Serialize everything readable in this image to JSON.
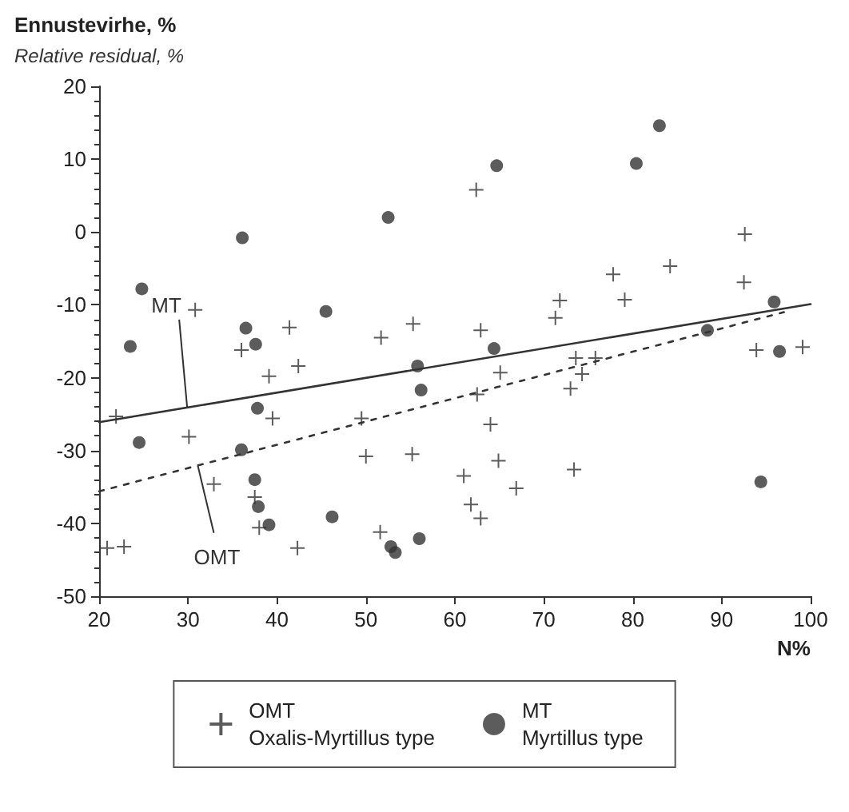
{
  "chart_data": {
    "type": "scatter",
    "title": "Ennustevirhe, %",
    "subtitle": "Relative residual, %",
    "xlabel": "N%",
    "xlim": [
      20,
      100
    ],
    "xticks": [
      20,
      30,
      40,
      50,
      60,
      70,
      80,
      90,
      100
    ],
    "ylim": [
      -50,
      20
    ],
    "yticks": [
      -50,
      -40,
      -30,
      -20,
      -10,
      0,
      10,
      20
    ],
    "grid": false,
    "legend": "bottom",
    "series": [
      {
        "name": "OMT\nOxalis-Myrtillus type",
        "marker": "cross",
        "color": "#333333",
        "x": [
          30.8,
          41.4,
          51.7,
          55.3,
          36.0,
          21.9,
          30.1,
          39.1,
          42.4,
          39.5,
          49.5,
          50.0,
          55.2,
          32.9,
          37.5,
          38.0,
          22.8,
          20.9,
          42.3,
          51.6,
          62.4,
          92.6,
          84.2,
          77.8,
          71.8,
          79.1,
          71.3,
          92.5,
          62.9,
          93.9,
          99.1,
          73.6,
          75.8,
          74.3,
          73.0,
          65.1,
          62.5,
          64.0,
          64.9,
          61.0,
          66.9,
          61.8,
          62.9,
          73.4
        ],
        "values": [
          -10.7,
          -13.1,
          -14.5,
          -12.6,
          -16.2,
          -25.3,
          -28.1,
          -19.8,
          -18.4,
          -25.6,
          -25.6,
          -30.8,
          -30.5,
          -34.6,
          -36.4,
          -40.6,
          -43.2,
          -43.4,
          -43.4,
          -41.2,
          5.8,
          -0.3,
          -4.7,
          -5.8,
          -9.4,
          -9.3,
          -11.8,
          -6.9,
          -13.5,
          -16.2,
          -15.8,
          -17.3,
          -17.3,
          -19.5,
          -21.5,
          -19.3,
          -22.3,
          -26.4,
          -31.4,
          -33.5,
          -35.2,
          -37.4,
          -39.3,
          -32.6
        ]
      },
      {
        "name": "MT\nMyrtillus type",
        "marker": "circle",
        "color": "#333333",
        "x": [
          24.8,
          23.5,
          36.1,
          36.5,
          37.6,
          45.5,
          52.5,
          64.7,
          80.4,
          83.0,
          95.9,
          88.4,
          64.4,
          96.5,
          94.4,
          24.5,
          37.8,
          36.0,
          37.5,
          37.9,
          39.1,
          46.2,
          52.8,
          53.3,
          56.0,
          55.8,
          56.2
        ],
        "values": [
          -7.8,
          -15.7,
          -0.8,
          -13.2,
          -15.4,
          -10.9,
          2.0,
          9.1,
          9.4,
          14.6,
          -9.6,
          -13.5,
          -16.0,
          -16.4,
          -34.3,
          -28.9,
          -24.2,
          -29.9,
          -34.0,
          -37.7,
          -40.2,
          -39.1,
          -43.2,
          -44.0,
          -42.1,
          -18.4,
          -21.7
        ]
      },
      {
        "type": "line",
        "line_style": "solid",
        "marker": "none",
        "color": "#333333",
        "x": [
          20,
          100
        ],
        "values": [
          -26.1,
          -9.9
        ]
      },
      {
        "type": "line",
        "line_style": "dotted",
        "marker": "none",
        "color": "#333333",
        "x": [
          20,
          97
        ],
        "values": [
          -35.6,
          -11.0
        ]
      }
    ],
    "annotations": [
      {
        "text": "MT",
        "x": 29.9,
        "y": -24.1
      },
      {
        "text": "OMT",
        "x": 31.1,
        "y": -32.1
      }
    ]
  }
}
